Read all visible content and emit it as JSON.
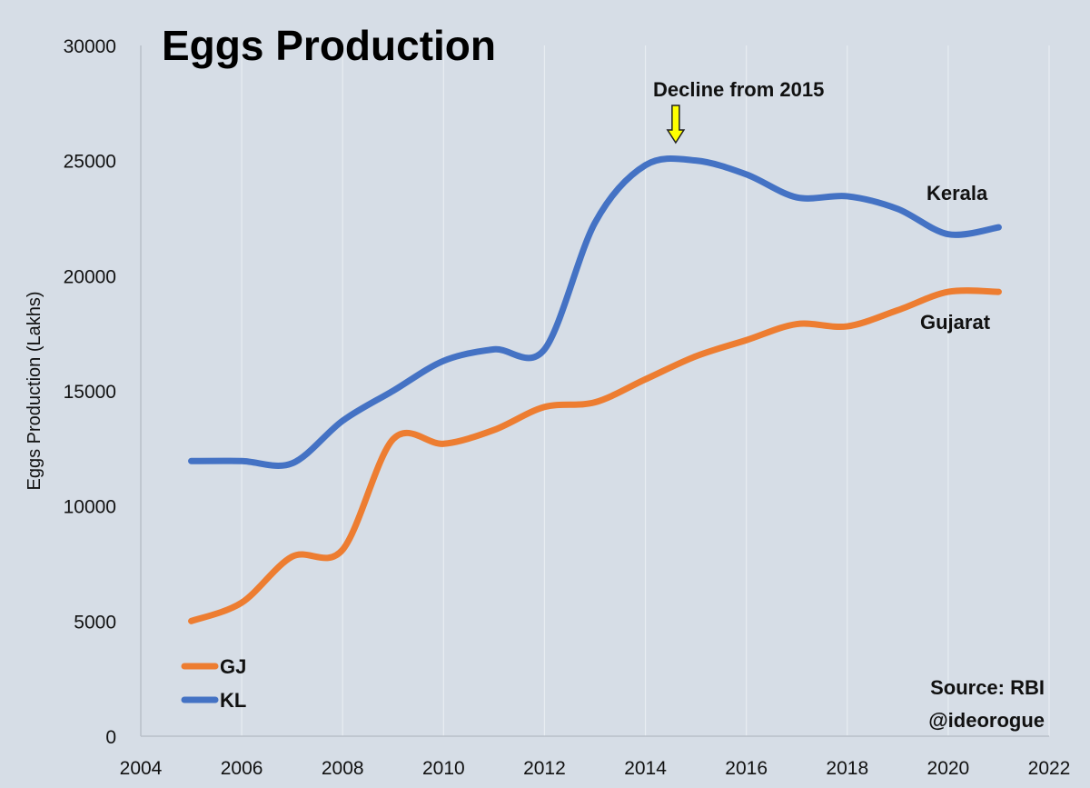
{
  "chart_data": {
    "type": "line",
    "title": "Eggs Production",
    "xlabel": "",
    "ylabel": "Eggs Production (Lakhs)",
    "xlim": [
      2004,
      2022
    ],
    "ylim": [
      0,
      30000
    ],
    "x_ticks": [
      2004,
      2006,
      2008,
      2010,
      2012,
      2014,
      2016,
      2018,
      2020,
      2022
    ],
    "y_ticks": [
      0,
      5000,
      10000,
      15000,
      20000,
      25000,
      30000
    ],
    "grid": "vertical",
    "x": [
      2005,
      2006,
      2007,
      2008,
      2009,
      2010,
      2011,
      2012,
      2013,
      2014,
      2015,
      2016,
      2017,
      2018,
      2019,
      2020,
      2021
    ],
    "series": [
      {
        "name": "GJ",
        "label": "Gujarat",
        "color": "#ed7d31",
        "values": [
          5000,
          5800,
          7800,
          8100,
          12900,
          12700,
          13300,
          14300,
          14500,
          15500,
          16500,
          17200,
          17900,
          17800,
          18500,
          19300,
          19300
        ]
      },
      {
        "name": "KL",
        "label": "Kerala",
        "color": "#4472c4",
        "values": [
          11950,
          11950,
          11850,
          13700,
          15000,
          16300,
          16800,
          16800,
          22300,
          24800,
          25000,
          24400,
          23400,
          23450,
          22900,
          21800,
          22100
        ]
      }
    ],
    "legend": {
      "position": "bottom-left",
      "entries": [
        "GJ",
        "KL"
      ]
    },
    "annotations": [
      {
        "text": "Decline from 2015",
        "x": 2014.6,
        "arrow": true,
        "arrow_color": "#ffff00"
      }
    ],
    "source": [
      "Source: RBI",
      "@ideorogue"
    ]
  }
}
